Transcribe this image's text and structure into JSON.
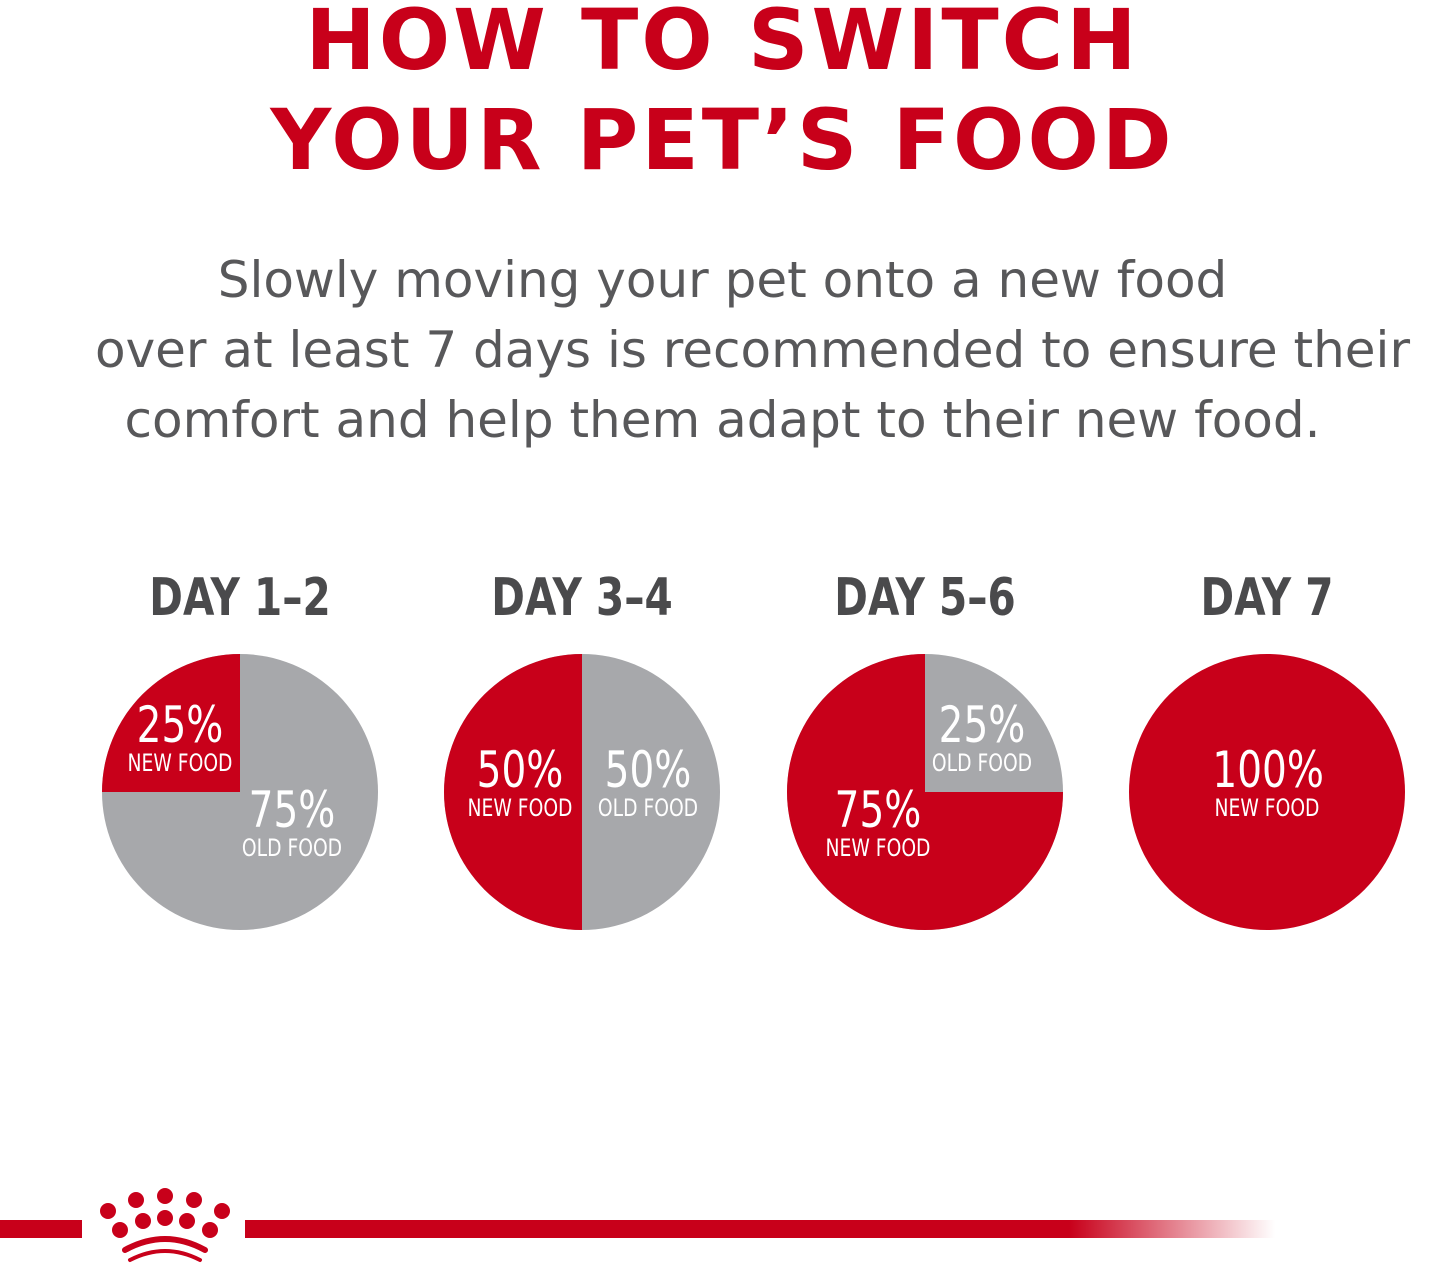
{
  "title": {
    "line1": "HOW TO SWITCH",
    "line2": "YOUR PET’S FOOD"
  },
  "subtitle": {
    "line1": "Slowly moving your pet onto a new food",
    "line2": "over at least 7 days is recommended to ensure their",
    "line3": "comfort and help them adapt to their new food."
  },
  "colors": {
    "new_food": "#c8001a",
    "old_food": "#a7a8ab",
    "title": "#c8001a",
    "text": "#58585a"
  },
  "logo": {
    "icon": "crown-icon"
  },
  "chart_data": {
    "type": "pie",
    "charts": [
      {
        "title": "DAY 1–2",
        "slices": [
          {
            "label": "NEW FOOD",
            "value": 25,
            "text": "25%"
          },
          {
            "label": "OLD FOOD",
            "value": 75,
            "text": "75%"
          }
        ]
      },
      {
        "title": "DAY 3–4",
        "slices": [
          {
            "label": "NEW FOOD",
            "value": 50,
            "text": "50%"
          },
          {
            "label": "OLD FOOD",
            "value": 50,
            "text": "50%"
          }
        ]
      },
      {
        "title": "DAY 5–6",
        "slices": [
          {
            "label": "NEW FOOD",
            "value": 75,
            "text": "75%"
          },
          {
            "label": "OLD FOOD",
            "value": 25,
            "text": "25%"
          }
        ]
      },
      {
        "title": "DAY 7",
        "slices": [
          {
            "label": "NEW FOOD",
            "value": 100,
            "text": "100%"
          }
        ]
      }
    ]
  }
}
